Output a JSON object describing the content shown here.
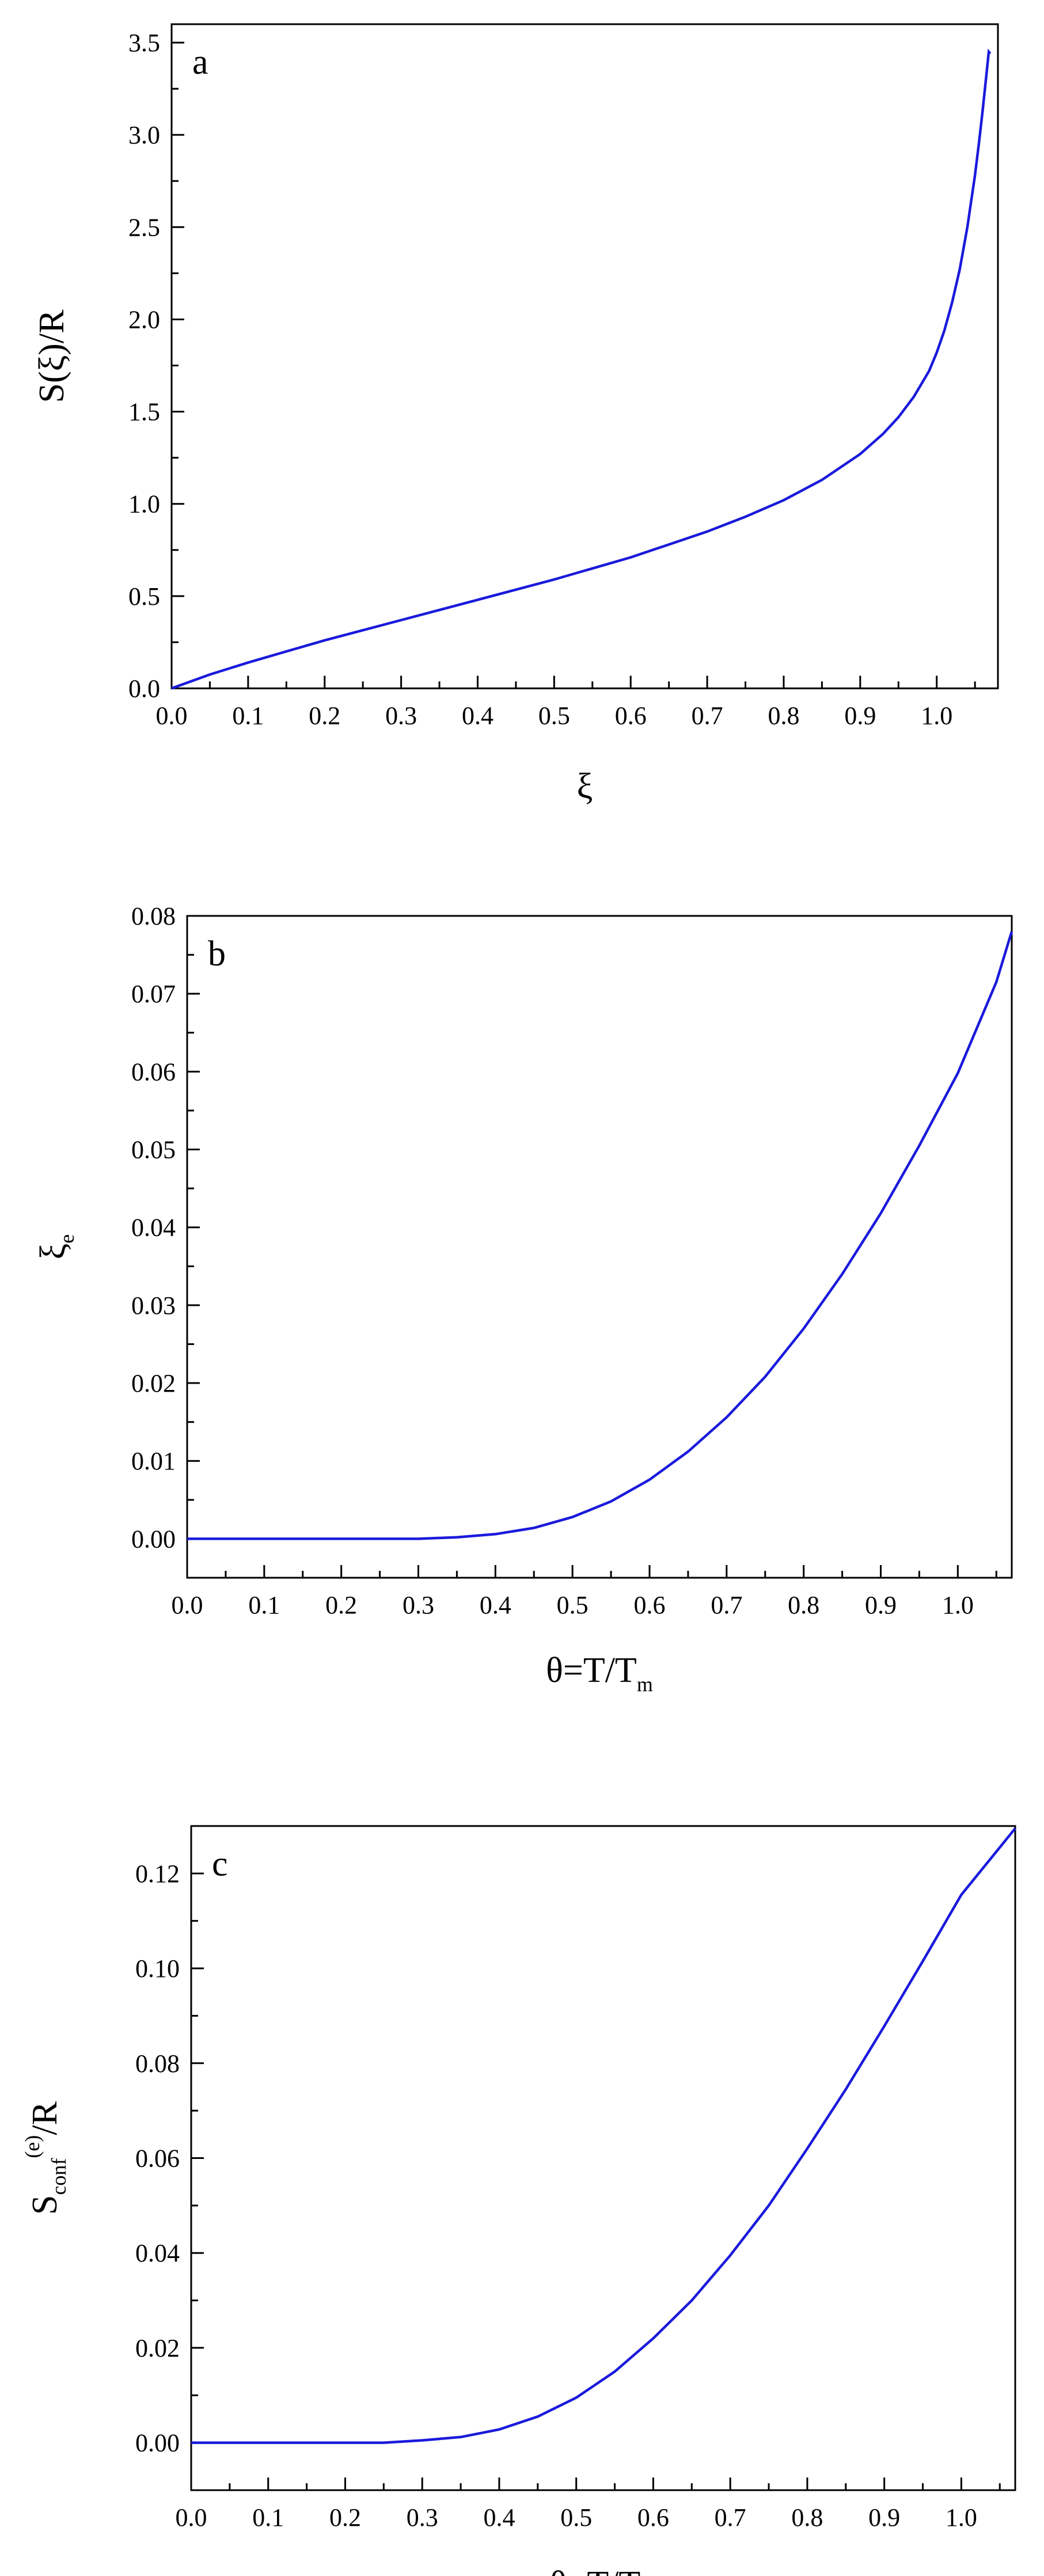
{
  "colors": {
    "curve": "#1a1adc",
    "axes": "#000000"
  },
  "chart_data": [
    {
      "type": "line",
      "panel_label": "a",
      "title": "",
      "xlabel": {
        "text": "ξ",
        "sub": ""
      },
      "ylabel": {
        "text": "S(ξ)/R",
        "sub": "",
        "sup": "",
        "tail": ""
      },
      "xlim": [
        0.0,
        1.08
      ],
      "ylim": [
        0.0,
        3.6
      ],
      "xticks": [
        0.0,
        0.1,
        0.2,
        0.3,
        0.4,
        0.5,
        0.6,
        0.7,
        0.8,
        0.9,
        1.0
      ],
      "xtick_labels": [
        "0.0",
        "0.1",
        "0.2",
        "0.3",
        "0.4",
        "0.5",
        "0.6",
        "0.7",
        "0.8",
        "0.9",
        "1.0"
      ],
      "yticks": [
        0.0,
        0.5,
        1.0,
        1.5,
        2.0,
        2.5,
        3.0,
        3.5
      ],
      "ytick_labels": [
        "0.0",
        "0.5",
        "1.0",
        "1.5",
        "2.0",
        "2.5",
        "3.0",
        "3.5"
      ],
      "grid": false,
      "series": [
        {
          "x": [
            0.0,
            0.02,
            0.05,
            0.1,
            0.15,
            0.2,
            0.25,
            0.3,
            0.35,
            0.4,
            0.45,
            0.5,
            0.55,
            0.6,
            0.65,
            0.7,
            0.75,
            0.8,
            0.85,
            0.9,
            0.93,
            0.95,
            0.97,
            0.99,
            1.0,
            1.01,
            1.02,
            1.03,
            1.04,
            1.05,
            1.055,
            1.06,
            1.065,
            1.068,
            1.07
          ],
          "y": [
            0.0,
            0.03,
            0.075,
            0.14,
            0.2,
            0.26,
            0.315,
            0.37,
            0.425,
            0.48,
            0.535,
            0.59,
            0.65,
            0.71,
            0.78,
            0.85,
            0.93,
            1.02,
            1.13,
            1.27,
            1.38,
            1.47,
            1.58,
            1.72,
            1.82,
            1.94,
            2.09,
            2.27,
            2.5,
            2.78,
            2.95,
            3.13,
            3.33,
            3.45,
            3.44
          ]
        }
      ]
    },
    {
      "type": "line",
      "panel_label": "b",
      "title": "",
      "xlabel": {
        "text": "θ=T/T",
        "sub": "m"
      },
      "ylabel": {
        "text": "ξ",
        "sub": "e",
        "sup": "",
        "tail": ""
      },
      "xlim": [
        0.0,
        1.07
      ],
      "ylim": [
        -0.005,
        0.08
      ],
      "xticks": [
        0.0,
        0.1,
        0.2,
        0.3,
        0.4,
        0.5,
        0.6,
        0.7,
        0.8,
        0.9,
        1.0
      ],
      "xtick_labels": [
        "0.0",
        "0.1",
        "0.2",
        "0.3",
        "0.4",
        "0.5",
        "0.6",
        "0.7",
        "0.8",
        "0.9",
        "1.0"
      ],
      "yticks": [
        0.0,
        0.01,
        0.02,
        0.03,
        0.04,
        0.05,
        0.06,
        0.07,
        0.08
      ],
      "ytick_labels": [
        "0.00",
        "0.01",
        "0.02",
        "0.03",
        "0.04",
        "0.05",
        "0.06",
        "0.07",
        "0.08"
      ],
      "grid": false,
      "series": [
        {
          "x": [
            0.0,
            0.1,
            0.2,
            0.3,
            0.35,
            0.4,
            0.45,
            0.5,
            0.55,
            0.6,
            0.65,
            0.7,
            0.75,
            0.8,
            0.85,
            0.9,
            0.95,
            1.0,
            1.05,
            1.07
          ],
          "y": [
            0.0,
            0.0,
            0.0,
            0.0,
            0.0002,
            0.0006,
            0.0014,
            0.0028,
            0.0048,
            0.0076,
            0.0112,
            0.0156,
            0.0208,
            0.027,
            0.034,
            0.0418,
            0.0505,
            0.0598,
            0.0715,
            0.078
          ]
        }
      ]
    },
    {
      "type": "line",
      "panel_label": "c",
      "title": "",
      "xlabel": {
        "text": "θ=T/T",
        "sub": "m"
      },
      "ylabel": {
        "text": "S",
        "sub": "conf",
        "sup": "(e)",
        "tail": "/R"
      },
      "xlim": [
        0.0,
        1.07
      ],
      "ylim": [
        -0.01,
        0.13
      ],
      "xticks": [
        0.0,
        0.1,
        0.2,
        0.3,
        0.4,
        0.5,
        0.6,
        0.7,
        0.8,
        0.9,
        1.0
      ],
      "xtick_labels": [
        "0.0",
        "0.1",
        "0.2",
        "0.3",
        "0.4",
        "0.5",
        "0.6",
        "0.7",
        "0.8",
        "0.9",
        "1.0"
      ],
      "yticks": [
        0.0,
        0.02,
        0.04,
        0.06,
        0.08,
        0.1,
        0.12
      ],
      "ytick_labels": [
        "0.00",
        "0.02",
        "0.04",
        "0.06",
        "0.08",
        "0.10",
        "0.12"
      ],
      "grid": false,
      "series": [
        {
          "x": [
            0.0,
            0.1,
            0.2,
            0.25,
            0.3,
            0.35,
            0.4,
            0.45,
            0.5,
            0.55,
            0.6,
            0.65,
            0.7,
            0.75,
            0.8,
            0.85,
            0.9,
            0.95,
            1.0,
            1.05,
            1.07
          ],
          "y": [
            0.0,
            0.0,
            0.0,
            0.0,
            0.0005,
            0.0012,
            0.0028,
            0.0055,
            0.0095,
            0.015,
            0.022,
            0.03,
            0.0395,
            0.05,
            0.062,
            0.0745,
            0.0878,
            0.1015,
            0.1155,
            0.1255,
            0.1295
          ]
        }
      ]
    }
  ]
}
